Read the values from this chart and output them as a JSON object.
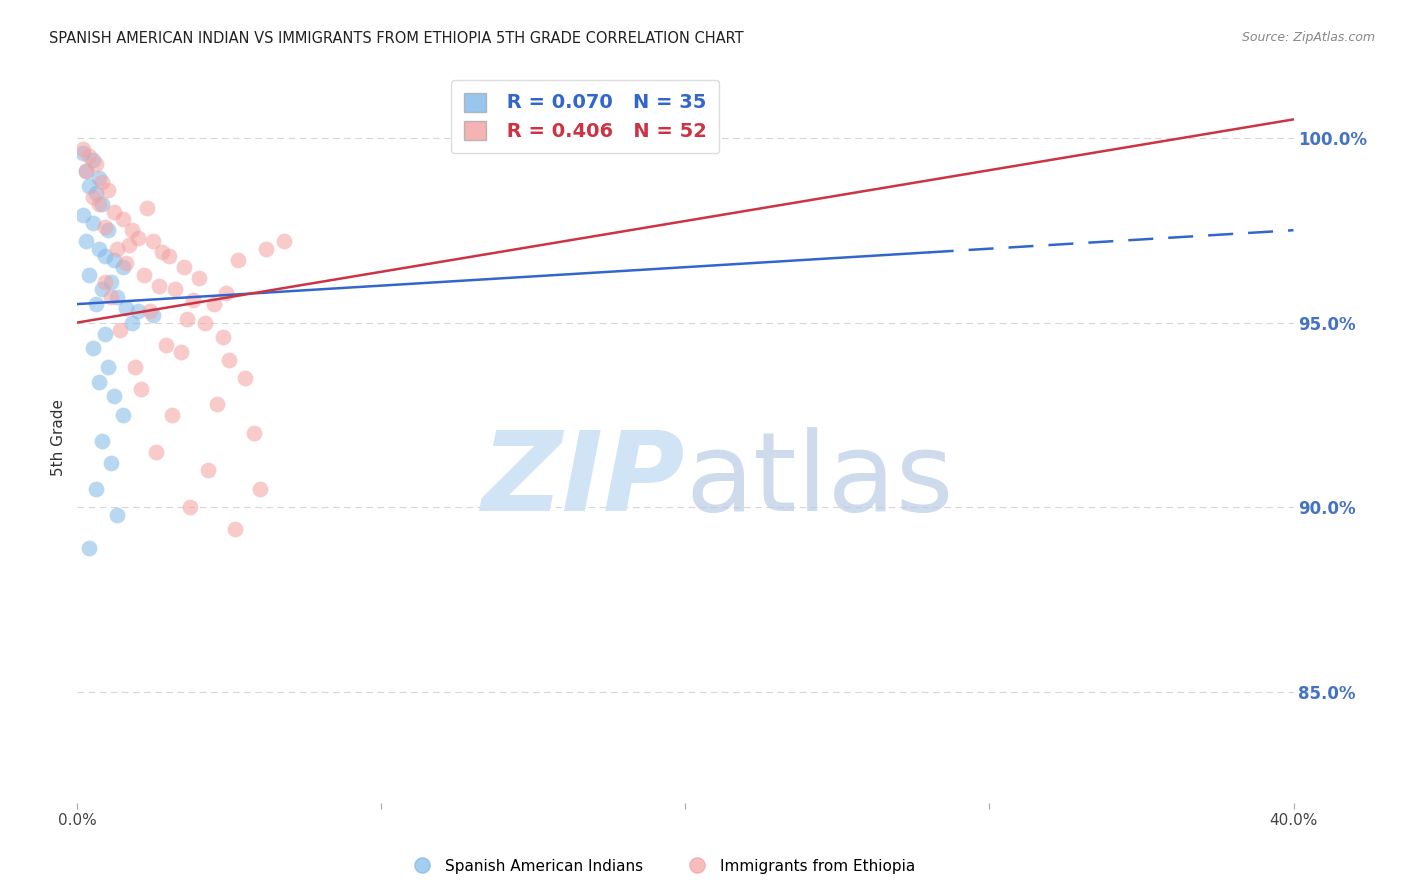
{
  "title": "SPANISH AMERICAN INDIAN VS IMMIGRANTS FROM ETHIOPIA 5TH GRADE CORRELATION CHART",
  "source": "Source: ZipAtlas.com",
  "ylabel": "5th Grade",
  "ylabel_right_ticks": [
    85.0,
    90.0,
    95.0,
    100.0
  ],
  "x_min": 0.0,
  "x_max": 40.0,
  "y_min": 82.0,
  "y_max": 101.8,
  "blue_R": 0.07,
  "blue_N": 35,
  "pink_R": 0.406,
  "pink_N": 52,
  "blue_color": "#7fb8e8",
  "pink_color": "#f4a0a0",
  "blue_line_color": "#3366cc",
  "pink_line_color": "#cc3344",
  "blue_scatter": [
    [
      0.2,
      99.6
    ],
    [
      0.5,
      99.4
    ],
    [
      0.3,
      99.1
    ],
    [
      0.7,
      98.9
    ],
    [
      0.4,
      98.7
    ],
    [
      0.6,
      98.5
    ],
    [
      0.8,
      98.2
    ],
    [
      0.2,
      97.9
    ],
    [
      0.5,
      97.7
    ],
    [
      1.0,
      97.5
    ],
    [
      0.3,
      97.2
    ],
    [
      0.7,
      97.0
    ],
    [
      0.9,
      96.8
    ],
    [
      1.2,
      96.7
    ],
    [
      1.5,
      96.5
    ],
    [
      0.4,
      96.3
    ],
    [
      1.1,
      96.1
    ],
    [
      0.8,
      95.9
    ],
    [
      1.3,
      95.7
    ],
    [
      0.6,
      95.5
    ],
    [
      1.6,
      95.4
    ],
    [
      2.0,
      95.3
    ],
    [
      2.5,
      95.2
    ],
    [
      1.8,
      95.0
    ],
    [
      0.9,
      94.7
    ],
    [
      0.5,
      94.3
    ],
    [
      1.0,
      93.8
    ],
    [
      0.7,
      93.4
    ],
    [
      1.2,
      93.0
    ],
    [
      1.5,
      92.5
    ],
    [
      0.8,
      91.8
    ],
    [
      1.1,
      91.2
    ],
    [
      0.6,
      90.5
    ],
    [
      1.3,
      89.8
    ],
    [
      0.4,
      88.9
    ]
  ],
  "pink_scatter": [
    [
      0.2,
      99.7
    ],
    [
      0.4,
      99.5
    ],
    [
      0.6,
      99.3
    ],
    [
      0.3,
      99.1
    ],
    [
      0.8,
      98.8
    ],
    [
      1.0,
      98.6
    ],
    [
      0.5,
      98.4
    ],
    [
      0.7,
      98.2
    ],
    [
      1.2,
      98.0
    ],
    [
      1.5,
      97.8
    ],
    [
      0.9,
      97.6
    ],
    [
      1.8,
      97.5
    ],
    [
      2.0,
      97.3
    ],
    [
      2.5,
      97.2
    ],
    [
      1.3,
      97.0
    ],
    [
      2.8,
      96.9
    ],
    [
      3.0,
      96.8
    ],
    [
      1.6,
      96.6
    ],
    [
      3.5,
      96.5
    ],
    [
      2.2,
      96.3
    ],
    [
      4.0,
      96.2
    ],
    [
      2.7,
      96.0
    ],
    [
      3.2,
      95.9
    ],
    [
      1.1,
      95.7
    ],
    [
      3.8,
      95.6
    ],
    [
      4.5,
      95.5
    ],
    [
      2.4,
      95.3
    ],
    [
      3.6,
      95.1
    ],
    [
      4.2,
      95.0
    ],
    [
      1.4,
      94.8
    ],
    [
      4.8,
      94.6
    ],
    [
      2.9,
      94.4
    ],
    [
      3.4,
      94.2
    ],
    [
      5.0,
      94.0
    ],
    [
      1.9,
      93.8
    ],
    [
      5.5,
      93.5
    ],
    [
      2.1,
      93.2
    ],
    [
      4.6,
      92.8
    ],
    [
      3.1,
      92.5
    ],
    [
      5.8,
      92.0
    ],
    [
      2.6,
      91.5
    ],
    [
      4.3,
      91.0
    ],
    [
      6.0,
      90.5
    ],
    [
      3.7,
      90.0
    ],
    [
      5.2,
      89.4
    ],
    [
      2.3,
      98.1
    ],
    [
      1.7,
      97.1
    ],
    [
      0.9,
      96.1
    ],
    [
      4.9,
      95.8
    ],
    [
      5.3,
      96.7
    ],
    [
      6.2,
      97.0
    ],
    [
      6.8,
      97.2
    ]
  ],
  "blue_line_x_start": 0.0,
  "blue_line_x_solid_end": 28.0,
  "blue_line_x_end": 40.0,
  "blue_line_y_at_0": 95.5,
  "blue_line_y_at_40": 97.5,
  "pink_line_x_start": 0.0,
  "pink_line_x_end": 40.0,
  "pink_line_y_at_0": 95.0,
  "pink_line_y_at_40": 100.5,
  "watermark_zip": "ZIP",
  "watermark_atlas": "atlas",
  "watermark_color": "#d0e4f5",
  "background_color": "#ffffff",
  "grid_color": "#cccccc"
}
